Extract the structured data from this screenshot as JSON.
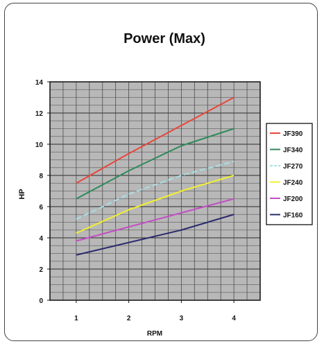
{
  "chart_data": {
    "type": "line",
    "title": "Power (Max)",
    "xlabel": "RPM",
    "ylabel": "HP",
    "x": [
      1,
      2,
      3,
      4
    ],
    "xlim": [
      0.5,
      4.5
    ],
    "ylim": [
      0,
      14
    ],
    "yticks": [
      0,
      2,
      4,
      6,
      8,
      10,
      12,
      14
    ],
    "grid": true,
    "grid_minor_step": 0.5,
    "plot_background": "#b8b8b8",
    "legend_position": "right",
    "series": [
      {
        "name": "JF390",
        "color": "#e8463a",
        "dash": "",
        "values": [
          7.5,
          9.4,
          11.2,
          13.0
        ]
      },
      {
        "name": "JF340",
        "color": "#2f8a5c",
        "dash": "",
        "values": [
          6.5,
          8.3,
          9.9,
          11.0
        ]
      },
      {
        "name": "JF270",
        "color": "#a7e0e6",
        "dash": "8 4",
        "values": [
          5.2,
          6.8,
          8.0,
          8.9
        ]
      },
      {
        "name": "JF240",
        "color": "#f2f030",
        "dash": "",
        "values": [
          4.3,
          5.8,
          7.0,
          8.0
        ]
      },
      {
        "name": "JF200",
        "color": "#c44ec4",
        "dash": "",
        "values": [
          3.8,
          4.7,
          5.6,
          6.5
        ]
      },
      {
        "name": "JF160",
        "color": "#2a2a6e",
        "dash": "",
        "values": [
          2.9,
          3.7,
          4.5,
          5.5
        ]
      }
    ]
  }
}
